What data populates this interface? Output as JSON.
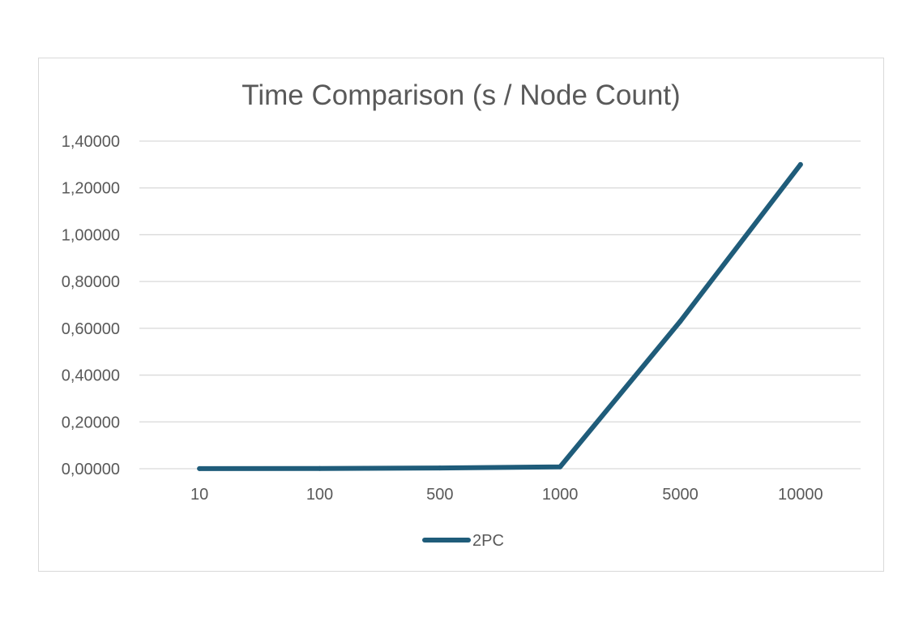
{
  "chart_data": {
    "type": "line",
    "title": "Time Comparison (s / Node Count)",
    "xlabel": "",
    "ylabel": "",
    "categories": [
      "10",
      "100",
      "500",
      "1000",
      "5000",
      "10000"
    ],
    "series": [
      {
        "name": "2PC",
        "values": [
          0.0005,
          0.001,
          0.003,
          0.008,
          0.63,
          1.3
        ],
        "color": "#1f5c7a"
      }
    ],
    "yticks": [
      "0,00000",
      "0,20000",
      "0,40000",
      "0,60000",
      "0,80000",
      "1,00000",
      "1,20000",
      "1,40000"
    ],
    "ylim": [
      0,
      1.4
    ],
    "grid": true,
    "legend_position": "bottom"
  }
}
